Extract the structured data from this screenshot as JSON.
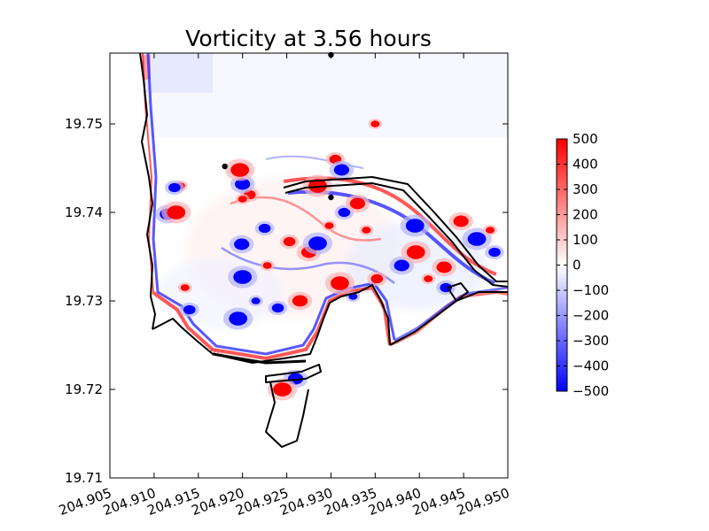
{
  "chart_data": {
    "type": "heatmap",
    "title": "Vorticity at 3.56 hours",
    "xlabel": "",
    "ylabel": "",
    "xlim": [
      204.905,
      204.95
    ],
    "ylim": [
      19.71,
      19.758
    ],
    "x_ticks": [
      "204.905",
      "204.910",
      "204.915",
      "204.920",
      "204.925",
      "204.930",
      "204.935",
      "204.940",
      "204.945",
      "204.950"
    ],
    "y_ticks": [
      "19.71",
      "19.72",
      "19.73",
      "19.74",
      "19.75"
    ],
    "grid": false,
    "colorbar": {
      "min": -500,
      "max": 500,
      "colormap": "bwr",
      "ticks": [
        "500",
        "400",
        "300",
        "200",
        "100",
        "0",
        "−100",
        "−200",
        "−300",
        "−400",
        "−500"
      ]
    },
    "coastline_color": "#000000",
    "marker_points": [
      {
        "x": 204.93,
        "y": 19.7578
      },
      {
        "x": 204.918,
        "y": 19.7452
      },
      {
        "x": 204.93,
        "y": 19.7417
      }
    ],
    "eddies": [
      {
        "x": 204.935,
        "y": 19.75,
        "sign": 1
      },
      {
        "x": 204.9208,
        "y": 19.742,
        "sign": 1
      },
      {
        "x": 204.92,
        "y": 19.7432,
        "sign": -1
      },
      {
        "x": 204.9197,
        "y": 19.7448,
        "sign": 1
      },
      {
        "x": 204.92,
        "y": 19.7415,
        "sign": 1
      },
      {
        "x": 204.9225,
        "y": 19.7382,
        "sign": -1
      },
      {
        "x": 204.9199,
        "y": 19.7364,
        "sign": -1
      },
      {
        "x": 204.92,
        "y": 19.7327,
        "sign": -1
      },
      {
        "x": 204.9228,
        "y": 19.734,
        "sign": 1
      },
      {
        "x": 204.9253,
        "y": 19.7367,
        "sign": 1
      },
      {
        "x": 204.9275,
        "y": 19.7355,
        "sign": 1
      },
      {
        "x": 204.9285,
        "y": 19.7365,
        "sign": -1
      },
      {
        "x": 204.9298,
        "y": 19.7385,
        "sign": 1
      },
      {
        "x": 204.9315,
        "y": 19.74,
        "sign": -1
      },
      {
        "x": 204.933,
        "y": 19.741,
        "sign": 1
      },
      {
        "x": 204.931,
        "y": 19.732,
        "sign": 1
      },
      {
        "x": 204.9325,
        "y": 19.7305,
        "sign": -1
      },
      {
        "x": 204.9352,
        "y": 19.7325,
        "sign": 1
      },
      {
        "x": 204.938,
        "y": 19.734,
        "sign": -1
      },
      {
        "x": 204.9396,
        "y": 19.7355,
        "sign": 1
      },
      {
        "x": 204.941,
        "y": 19.7325,
        "sign": 1
      },
      {
        "x": 204.943,
        "y": 19.7315,
        "sign": -1
      },
      {
        "x": 204.9428,
        "y": 19.7338,
        "sign": 1
      },
      {
        "x": 204.9395,
        "y": 19.7385,
        "sign": -1
      },
      {
        "x": 204.934,
        "y": 19.738,
        "sign": 1
      },
      {
        "x": 204.9305,
        "y": 19.746,
        "sign": 1
      },
      {
        "x": 204.9312,
        "y": 19.7448,
        "sign": -1
      },
      {
        "x": 204.9285,
        "y": 19.743,
        "sign": 1
      },
      {
        "x": 204.9215,
        "y": 19.73,
        "sign": -1
      },
      {
        "x": 204.924,
        "y": 19.7292,
        "sign": -1
      },
      {
        "x": 204.9265,
        "y": 19.73,
        "sign": 1
      },
      {
        "x": 204.9195,
        "y": 19.728,
        "sign": -1
      },
      {
        "x": 204.913,
        "y": 19.743,
        "sign": 1
      },
      {
        "x": 204.9123,
        "y": 19.7428,
        "sign": -1
      },
      {
        "x": 204.9115,
        "y": 19.7398,
        "sign": -1
      },
      {
        "x": 204.9125,
        "y": 19.74,
        "sign": 1
      },
      {
        "x": 204.9135,
        "y": 19.7315,
        "sign": 1
      },
      {
        "x": 204.914,
        "y": 19.729,
        "sign": -1
      },
      {
        "x": 204.9447,
        "y": 19.739,
        "sign": 1
      },
      {
        "x": 204.9465,
        "y": 19.737,
        "sign": -1
      },
      {
        "x": 204.948,
        "y": 19.738,
        "sign": 1
      },
      {
        "x": 204.9485,
        "y": 19.7355,
        "sign": -1
      },
      {
        "x": 204.926,
        "y": 19.7212,
        "sign": -1
      },
      {
        "x": 204.9245,
        "y": 19.72,
        "sign": 1
      }
    ]
  }
}
